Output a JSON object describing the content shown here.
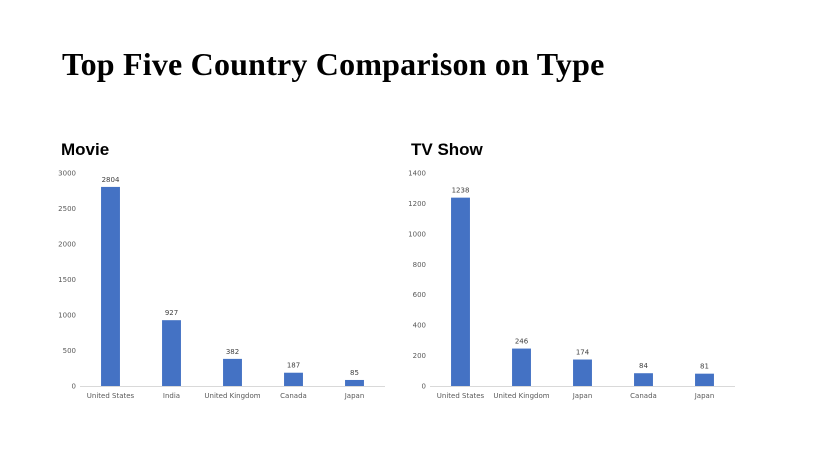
{
  "title": "Top Five Country Comparison on Type",
  "chart_data": [
    {
      "type": "bar",
      "title": "Movie",
      "categories": [
        "United States",
        "India",
        "United Kingdom",
        "Canada",
        "Japan"
      ],
      "values": [
        2804,
        927,
        382,
        187,
        85
      ],
      "ylim": [
        0,
        3000
      ],
      "yticks": [
        0,
        500,
        1000,
        1500,
        2000,
        2500,
        3000
      ],
      "xlabel": "",
      "ylabel": "",
      "grid": false,
      "bar_color": "#4472C4"
    },
    {
      "type": "bar",
      "title": "TV Show",
      "categories": [
        "United States",
        "United Kingdom",
        "Japan",
        "Canada",
        "Japan"
      ],
      "values": [
        1238,
        246,
        174,
        84,
        81
      ],
      "ylim": [
        0,
        1400
      ],
      "yticks": [
        0,
        200,
        400,
        600,
        800,
        1000,
        1200,
        1400
      ],
      "xlabel": "",
      "ylabel": "",
      "grid": false,
      "bar_color": "#4472C4"
    }
  ]
}
